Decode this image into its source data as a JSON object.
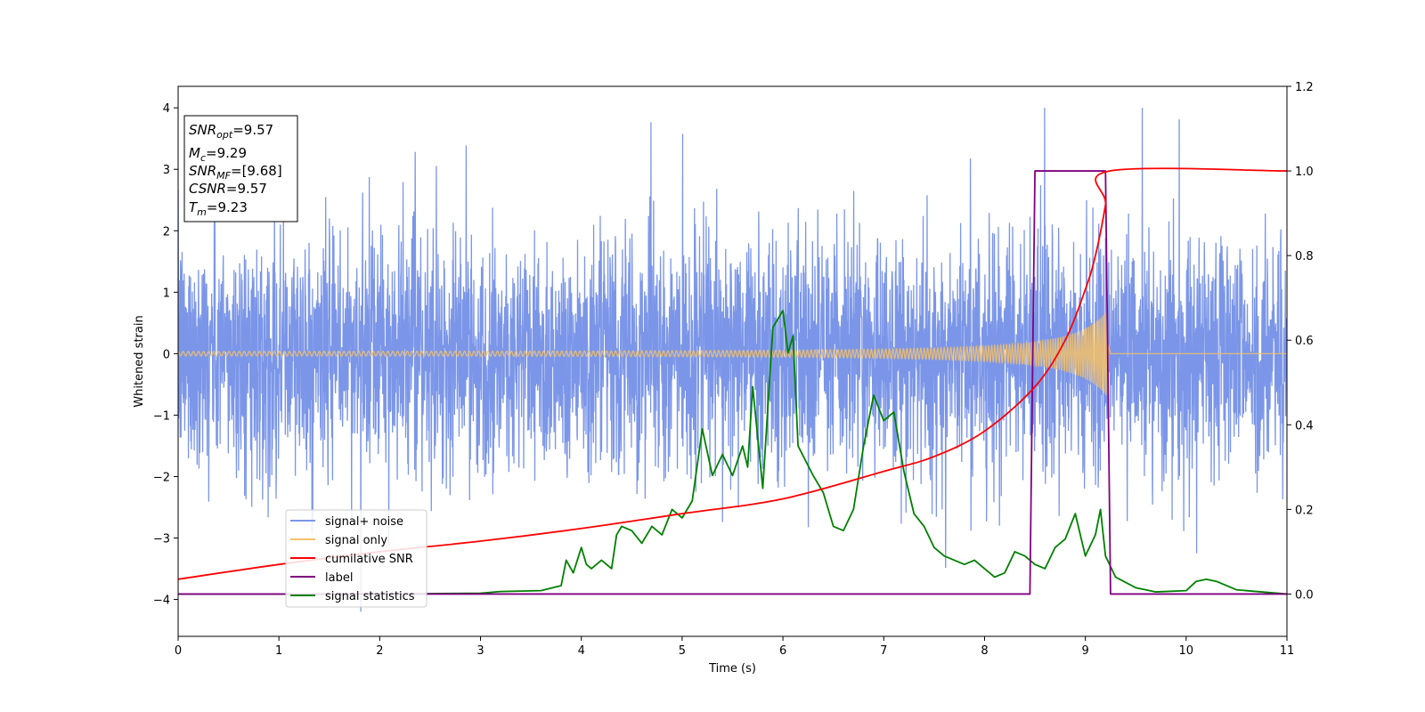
{
  "chart_data": {
    "type": "line",
    "xlabel": "Time (s)",
    "ylabel": "Whitened strain",
    "xlim": [
      0,
      11
    ],
    "ylim_left": [
      -4.6,
      4.35
    ],
    "ylim_right": [
      -0.1,
      1.2
    ],
    "x_ticks": [
      "0",
      "1",
      "2",
      "3",
      "4",
      "5",
      "6",
      "7",
      "8",
      "9",
      "10",
      "11"
    ],
    "y_left_ticks": [
      "4",
      "3",
      "2",
      "1",
      "0",
      "−1",
      "−2",
      "−3",
      "−4"
    ],
    "y_right_ticks": [
      "1.2",
      "1.0",
      "0.8",
      "0.6",
      "0.4",
      "0.2",
      "0.0"
    ],
    "legend_position": "lower-left",
    "grid": false,
    "annotation": {
      "snr_opt": {
        "prefix": "SNR",
        "sub": "opt",
        "value": "=9.57"
      },
      "mc": {
        "prefix": "M",
        "sub": "c",
        "value": "=9.29"
      },
      "snr_mf": {
        "prefix": "SNR",
        "sub": "MF",
        "value": "=[9.68]"
      },
      "csnr": {
        "prefix": "CSNR",
        "value": "=9.57"
      },
      "tm": {
        "prefix": "T",
        "sub": "m",
        "value": "=9.23"
      }
    },
    "series": [
      {
        "name": "signal+ noise",
        "color": "#7b96e8",
        "axis": "left",
        "kind": "noise",
        "std": 0.95,
        "t_end": 11.0
      },
      {
        "name": "signal only",
        "color": "#f5c169",
        "axis": "left",
        "kind": "chirp",
        "t_merger": 9.23,
        "peak_amplitude": 0.7
      },
      {
        "name": "cumilative SNR",
        "color": "#ff0000",
        "axis": "right",
        "x": [
          0,
          1,
          2,
          3,
          4,
          5,
          6,
          7,
          7.5,
          8,
          8.5,
          8.8,
          9.0,
          9.1,
          9.2,
          9.24,
          11
        ],
        "y": [
          0.035,
          0.07,
          0.1,
          0.125,
          0.155,
          0.19,
          0.225,
          0.29,
          0.325,
          0.385,
          0.49,
          0.6,
          0.72,
          0.8,
          0.92,
          1.0,
          1.0
        ]
      },
      {
        "name": "label",
        "color": "#800080",
        "axis": "right",
        "x": [
          0,
          8.45,
          8.5,
          9.2,
          9.25,
          11
        ],
        "y": [
          0,
          0,
          1,
          1,
          0,
          0
        ]
      },
      {
        "name": "signal statistics",
        "color": "#008000",
        "axis": "right",
        "x": [
          0,
          1,
          2,
          3,
          3.2,
          3.6,
          3.8,
          3.85,
          3.92,
          4.0,
          4.05,
          4.1,
          4.2,
          4.3,
          4.35,
          4.4,
          4.5,
          4.6,
          4.7,
          4.8,
          4.9,
          5.0,
          5.1,
          5.2,
          5.3,
          5.4,
          5.5,
          5.6,
          5.65,
          5.7,
          5.8,
          5.9,
          6.0,
          6.05,
          6.1,
          6.15,
          6.3,
          6.4,
          6.5,
          6.6,
          6.7,
          6.8,
          6.9,
          7.0,
          7.1,
          7.2,
          7.3,
          7.4,
          7.5,
          7.6,
          7.7,
          7.8,
          7.9,
          8.0,
          8.1,
          8.2,
          8.3,
          8.4,
          8.5,
          8.6,
          8.7,
          8.8,
          8.9,
          9.0,
          9.1,
          9.15,
          9.2,
          9.3,
          9.5,
          9.7,
          10.0,
          10.1,
          10.2,
          10.3,
          10.5,
          10.8,
          11.0
        ],
        "y": [
          0.0,
          0.0,
          0.0,
          0.002,
          0.006,
          0.008,
          0.02,
          0.08,
          0.05,
          0.11,
          0.07,
          0.06,
          0.08,
          0.06,
          0.14,
          0.16,
          0.15,
          0.12,
          0.16,
          0.14,
          0.2,
          0.18,
          0.22,
          0.39,
          0.28,
          0.33,
          0.28,
          0.35,
          0.3,
          0.49,
          0.25,
          0.63,
          0.67,
          0.57,
          0.61,
          0.35,
          0.28,
          0.24,
          0.16,
          0.15,
          0.2,
          0.35,
          0.47,
          0.41,
          0.43,
          0.29,
          0.19,
          0.16,
          0.11,
          0.09,
          0.08,
          0.07,
          0.08,
          0.06,
          0.04,
          0.05,
          0.1,
          0.09,
          0.07,
          0.06,
          0.11,
          0.13,
          0.19,
          0.09,
          0.14,
          0.2,
          0.09,
          0.04,
          0.015,
          0.005,
          0.008,
          0.03,
          0.035,
          0.03,
          0.01,
          0.004,
          0.0
        ]
      }
    ]
  }
}
